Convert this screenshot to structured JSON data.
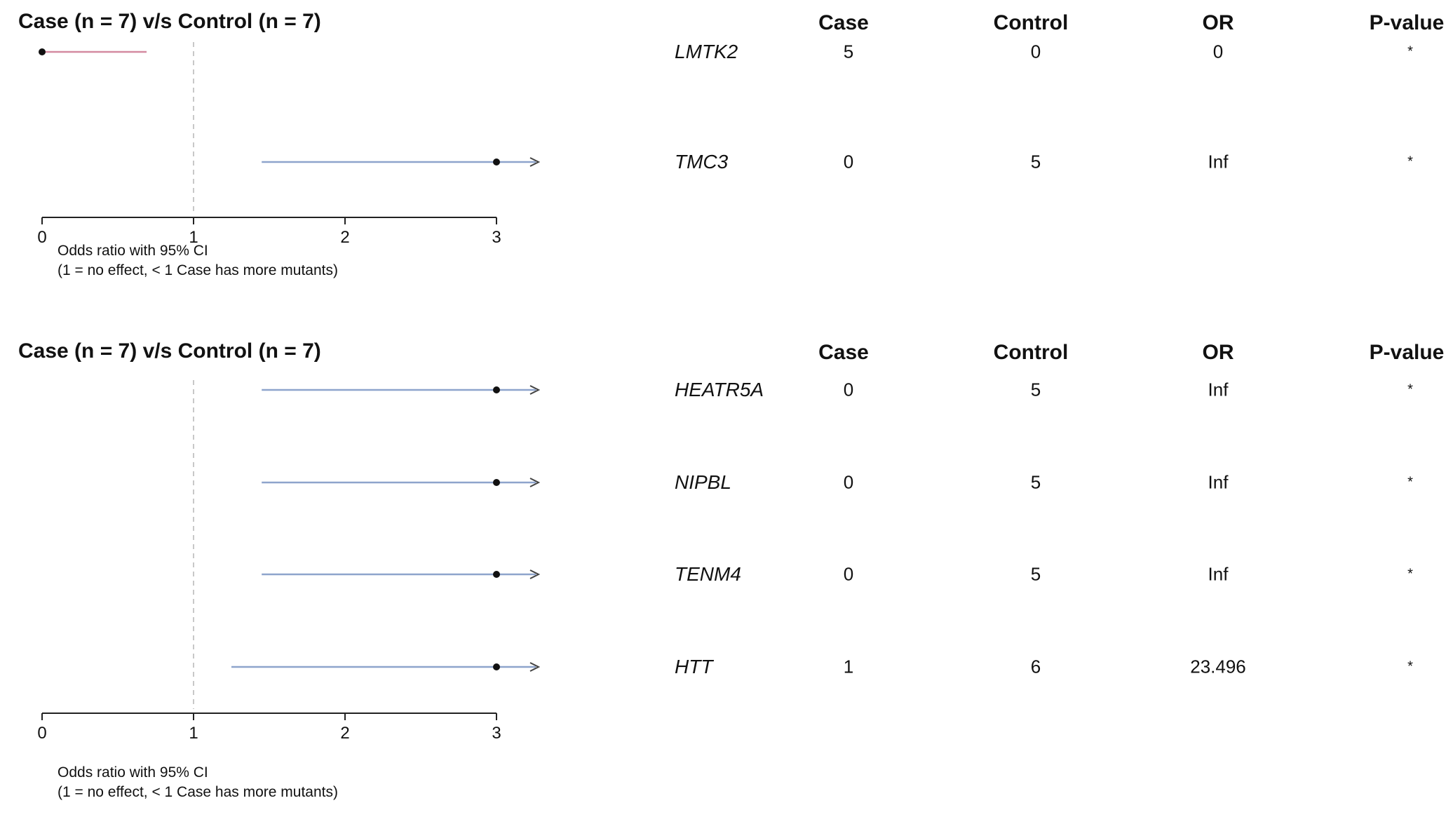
{
  "chart_data": [
    {
      "type": "forest",
      "title": "Case (n = 7) v/s Control (n = 7)",
      "columns": [
        "Case",
        "Control",
        "OR",
        "P-value"
      ],
      "xlim": [
        0,
        3
      ],
      "xticks": [
        "0",
        "1",
        "2",
        "3"
      ],
      "reference_line": 1,
      "xlabel_line1": "Odds ratio with 95% CI",
      "xlabel_line2": "(1 = no effect, < 1 Case has more mutants)",
      "rows": [
        {
          "gene": "LMTK2",
          "case": "5",
          "control": "0",
          "or": "0",
          "pvalue": "*",
          "estimate": 0,
          "ci_low": 0,
          "ci_high": 0.69,
          "arrow": false,
          "color": "#d48aa0"
        },
        {
          "gene": "TMC3",
          "case": "0",
          "control": "5",
          "or": "Inf",
          "pvalue": "*",
          "estimate": 3,
          "ci_low": 1.45,
          "ci_high": 3,
          "arrow": true,
          "color": "#8ea4cc"
        }
      ]
    },
    {
      "type": "forest",
      "title": "Case (n = 7) v/s Control (n = 7)",
      "columns": [
        "Case",
        "Control",
        "OR",
        "P-value"
      ],
      "xlim": [
        0,
        3
      ],
      "xticks": [
        "0",
        "1",
        "2",
        "3"
      ],
      "reference_line": 1,
      "xlabel_line1": "Odds ratio with 95% CI",
      "xlabel_line2": "(1 = no effect, < 1 Case has more mutants)",
      "rows": [
        {
          "gene": "HEATR5A",
          "case": "0",
          "control": "5",
          "or": "Inf",
          "pvalue": "*",
          "estimate": 3,
          "ci_low": 1.45,
          "ci_high": 3,
          "arrow": true,
          "color": "#8ea4cc"
        },
        {
          "gene": "NIPBL",
          "case": "0",
          "control": "5",
          "or": "Inf",
          "pvalue": "*",
          "estimate": 3,
          "ci_low": 1.45,
          "ci_high": 3,
          "arrow": true,
          "color": "#8ea4cc"
        },
        {
          "gene": "TENM4",
          "case": "0",
          "control": "5",
          "or": "Inf",
          "pvalue": "*",
          "estimate": 3,
          "ci_low": 1.45,
          "ci_high": 3,
          "arrow": true,
          "color": "#8ea4cc"
        },
        {
          "gene": "HTT",
          "case": "1",
          "control": "6",
          "or": "23.496",
          "pvalue": "*",
          "estimate": 3,
          "ci_low": 1.25,
          "ci_high": 3,
          "arrow": true,
          "color": "#8ea4cc"
        }
      ]
    }
  ]
}
